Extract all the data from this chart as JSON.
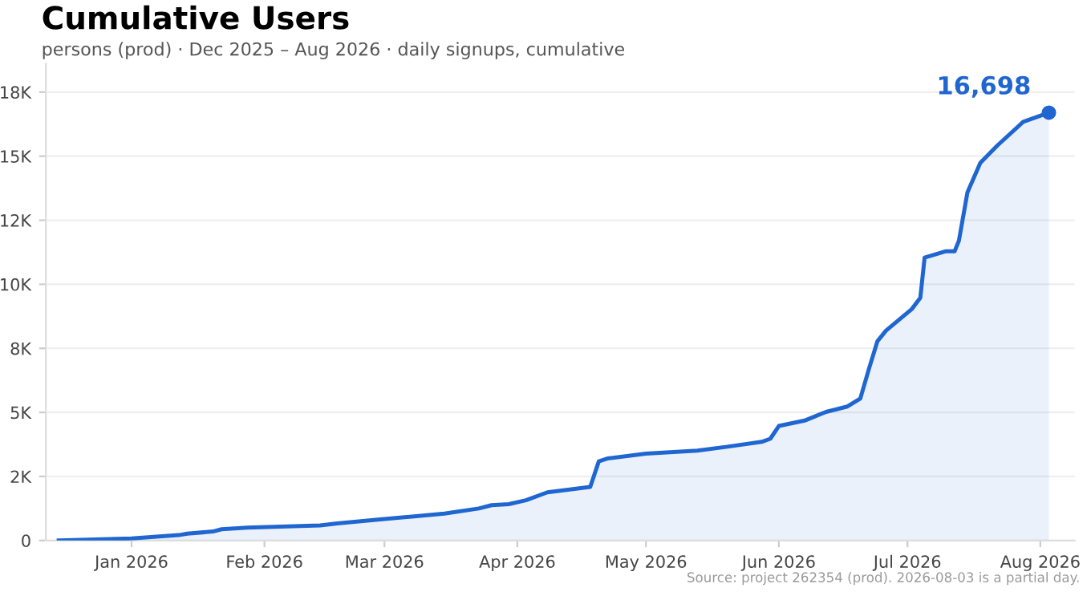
{
  "chart_data": {
    "type": "area",
    "title": "Cumulative Users",
    "subtitle": "persons (prod) · Dec 2025 – Aug 2026 · daily signups, cumulative",
    "annotations": [
      "Source: project 262354 (prod). 2026-08-03 is a partial day."
    ],
    "series": [
      {
        "color": "#1f66d1",
        "x": [
          "2025-12-15",
          "2026-01-01",
          "2026-01-12",
          "2026-01-14",
          "2026-01-20",
          "2026-01-22",
          "2026-01-28",
          "2026-02-14",
          "2026-02-18",
          "2026-03-01",
          "2026-03-15",
          "2026-03-23",
          "2026-03-26",
          "2026-03-30",
          "2026-04-03",
          "2026-04-08",
          "2026-04-18",
          "2026-04-20",
          "2026-04-22",
          "2026-05-01",
          "2026-05-13",
          "2026-05-20",
          "2026-05-28",
          "2026-05-30",
          "2026-06-01",
          "2026-06-07",
          "2026-06-12",
          "2026-06-17",
          "2026-06-20",
          "2026-06-22",
          "2026-06-24",
          "2026-06-26",
          "2026-07-02",
          "2026-07-04",
          "2026-07-05",
          "2026-07-10",
          "2026-07-12",
          "2026-07-13",
          "2026-07-15",
          "2026-07-18",
          "2026-07-22",
          "2026-07-28",
          "2026-08-03"
        ],
        "values": [
          0,
          80,
          210,
          270,
          350,
          440,
          500,
          590,
          670,
          840,
          1050,
          1250,
          1380,
          1420,
          1570,
          1880,
          2090,
          3090,
          3200,
          3390,
          3510,
          3660,
          3850,
          3970,
          4470,
          4680,
          5020,
          5230,
          5540,
          6690,
          7780,
          8190,
          9030,
          9470,
          11040,
          11290,
          11290,
          11700,
          13590,
          14740,
          15420,
          16340,
          16700
        ]
      },
      {
        "type": "scatter",
        "color": "#1f66d1",
        "marker": "circle",
        "x": [
          "2026-08-03"
        ],
        "values": [
          16698
        ],
        "value_labels": [
          "16,698"
        ]
      }
    ],
    "xlim": [
      "2025-12-12",
      "2026-08-09"
    ],
    "xticks": [
      {
        "value": "2026-01-01",
        "label": "Jan 2026"
      },
      {
        "value": "2026-02-01",
        "label": "Feb 2026"
      },
      {
        "value": "2026-03-01",
        "label": "Mar 2026"
      },
      {
        "value": "2026-04-01",
        "label": "Apr 2026"
      },
      {
        "value": "2026-05-01",
        "label": "May 2026"
      },
      {
        "value": "2026-06-01",
        "label": "Jun 2026"
      },
      {
        "value": "2026-07-01",
        "label": "Jul 2026"
      },
      {
        "value": "2026-08-01",
        "label": "Aug 2026"
      }
    ],
    "ylim": [
      0,
      18600
    ],
    "yticks": [
      0,
      {
        "value": 2500,
        "label": "2K"
      },
      {
        "value": 5000,
        "label": "5K"
      },
      {
        "value": 7500,
        "label": "8K"
      },
      {
        "value": 10000,
        "label": "10K"
      },
      {
        "value": 12500,
        "label": "12K"
      },
      {
        "value": 15000,
        "label": "15K"
      },
      {
        "value": 17500,
        "label": "18K"
      }
    ],
    "grid": "y",
    "legend": false
  }
}
